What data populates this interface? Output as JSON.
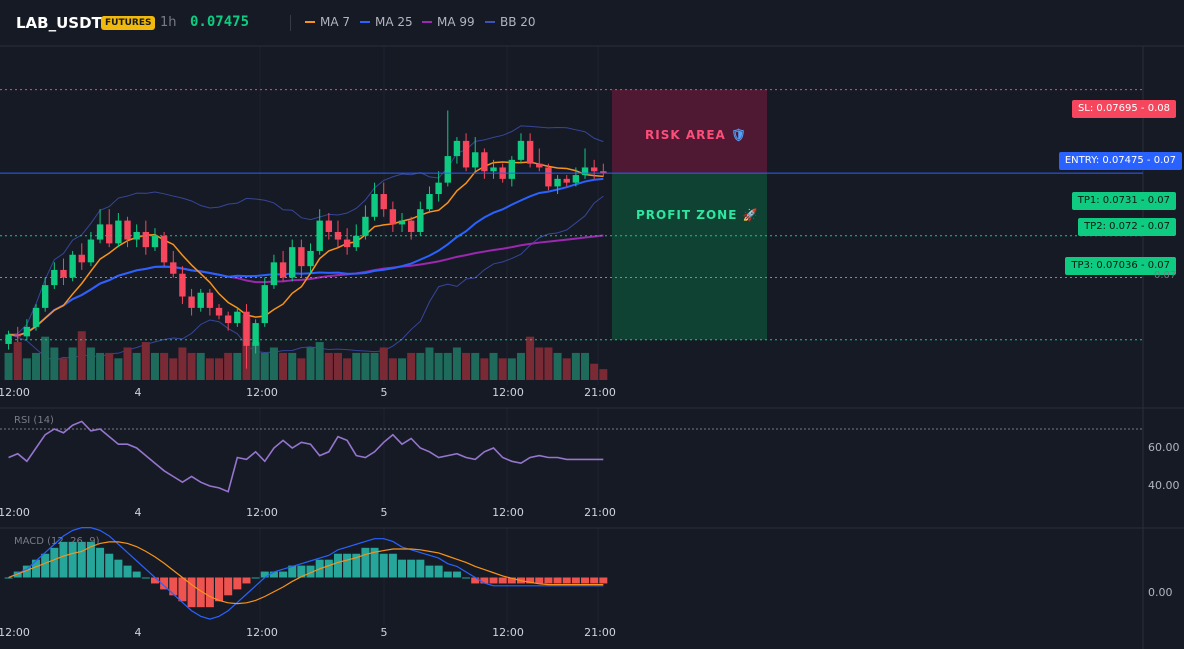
{
  "header": {
    "symbol": "LAB_USDT",
    "badge": "FUTURES",
    "timeframe": "1h",
    "price": "0.07475",
    "legend": [
      {
        "label": "MA 7",
        "color": "#f7931a"
      },
      {
        "label": "MA 25",
        "color": "#2962ff"
      },
      {
        "label": "MA 99",
        "color": "#9c27b0"
      },
      {
        "label": "BB 20",
        "color": "#3f51b5"
      }
    ]
  },
  "zones": {
    "risk_label": "RISK AREA",
    "profit_label": "PROFIT ZONE",
    "risk_icon": "shield-icon",
    "profit_icon": "rocket-icon"
  },
  "price_tags": {
    "sl": "SL: 0.07695 - 0.08",
    "entry": "ENTRY: 0.07475 - 0.07",
    "tp1": "TP1: 0.0731 - 0.07",
    "tp2": "TP2: 0.072 - 0.07",
    "tp3": "TP3: 0.07036 - 0.07",
    "axis_partial": "0.07"
  },
  "rsi": {
    "label": "RSI (14)",
    "ticks": [
      "60.00",
      "40.00"
    ]
  },
  "macd": {
    "label": "MACD (12, 26, 9)",
    "ticks": [
      "0.00"
    ]
  },
  "chart_data": {
    "type": "candlestick",
    "x_ticks": [
      "12:00",
      "4",
      "12:00",
      "5",
      "12:00",
      "21:00"
    ],
    "levels": {
      "sl": 0.07695,
      "entry": 0.07475,
      "tp1": 0.0731,
      "tp2": 0.072,
      "tp3": 0.07036
    },
    "ylim": [
      0.0693,
      0.0781
    ],
    "candles": [
      [
        0.07025,
        0.0705,
        0.0701,
        0.0706
      ],
      [
        0.0705,
        0.07045,
        0.0703,
        0.0707
      ],
      [
        0.07045,
        0.0707,
        0.07035,
        0.0709
      ],
      [
        0.0707,
        0.0712,
        0.0706,
        0.0713
      ],
      [
        0.0712,
        0.0718,
        0.0711,
        0.072
      ],
      [
        0.0718,
        0.0722,
        0.0717,
        0.0724
      ],
      [
        0.0722,
        0.072,
        0.0718,
        0.0725
      ],
      [
        0.072,
        0.0726,
        0.0719,
        0.0727
      ],
      [
        0.0726,
        0.0724,
        0.0722,
        0.0729
      ],
      [
        0.0724,
        0.073,
        0.0723,
        0.0732
      ],
      [
        0.073,
        0.0734,
        0.0729,
        0.0738
      ],
      [
        0.0734,
        0.0729,
        0.0728,
        0.0738
      ],
      [
        0.0729,
        0.0735,
        0.0728,
        0.0737
      ],
      [
        0.0735,
        0.073,
        0.0728,
        0.0736
      ],
      [
        0.073,
        0.0732,
        0.0728,
        0.0734
      ],
      [
        0.0732,
        0.0728,
        0.0726,
        0.0735
      ],
      [
        0.0728,
        0.0731,
        0.0727,
        0.0733
      ],
      [
        0.0731,
        0.0724,
        0.0723,
        0.0732
      ],
      [
        0.0724,
        0.0721,
        0.072,
        0.0727
      ],
      [
        0.0721,
        0.0715,
        0.0713,
        0.0723
      ],
      [
        0.0715,
        0.0712,
        0.071,
        0.0717
      ],
      [
        0.0712,
        0.0716,
        0.0711,
        0.0717
      ],
      [
        0.0716,
        0.0712,
        0.071,
        0.0717
      ],
      [
        0.0712,
        0.071,
        0.0709,
        0.0713
      ],
      [
        0.071,
        0.0708,
        0.0706,
        0.0711
      ],
      [
        0.0708,
        0.0711,
        0.0707,
        0.0712
      ],
      [
        0.0711,
        0.0702,
        0.0696,
        0.0713
      ],
      [
        0.0702,
        0.0708,
        0.07,
        0.0709
      ],
      [
        0.0708,
        0.0718,
        0.0707,
        0.072
      ],
      [
        0.0718,
        0.0724,
        0.0717,
        0.0726
      ],
      [
        0.0724,
        0.072,
        0.0719,
        0.0727
      ],
      [
        0.072,
        0.0728,
        0.0719,
        0.073
      ],
      [
        0.0728,
        0.0723,
        0.072,
        0.073
      ],
      [
        0.0723,
        0.0727,
        0.0721,
        0.0729
      ],
      [
        0.0727,
        0.0735,
        0.0726,
        0.0738
      ],
      [
        0.0735,
        0.0732,
        0.073,
        0.0737
      ],
      [
        0.0732,
        0.073,
        0.0728,
        0.0735
      ],
      [
        0.073,
        0.0728,
        0.0726,
        0.0733
      ],
      [
        0.0728,
        0.0731,
        0.0727,
        0.0734
      ],
      [
        0.0731,
        0.0736,
        0.073,
        0.0739
      ],
      [
        0.0736,
        0.0742,
        0.0735,
        0.0745
      ],
      [
        0.0742,
        0.0738,
        0.0736,
        0.0745
      ],
      [
        0.0738,
        0.0734,
        0.0732,
        0.074
      ],
      [
        0.0734,
        0.0735,
        0.0732,
        0.0737
      ],
      [
        0.0735,
        0.0732,
        0.073,
        0.0736
      ],
      [
        0.0732,
        0.0738,
        0.0731,
        0.074
      ],
      [
        0.0738,
        0.0742,
        0.0737,
        0.0744
      ],
      [
        0.0742,
        0.0745,
        0.074,
        0.0748
      ],
      [
        0.0745,
        0.0752,
        0.0744,
        0.0764
      ],
      [
        0.0752,
        0.0756,
        0.075,
        0.0757
      ],
      [
        0.0756,
        0.0749,
        0.0748,
        0.0758
      ],
      [
        0.0749,
        0.0753,
        0.0748,
        0.0757
      ],
      [
        0.0753,
        0.0748,
        0.0746,
        0.0754
      ],
      [
        0.0748,
        0.0749,
        0.0746,
        0.0751
      ],
      [
        0.0749,
        0.0746,
        0.0745,
        0.075
      ],
      [
        0.0746,
        0.0751,
        0.0744,
        0.0752
      ],
      [
        0.0751,
        0.0756,
        0.075,
        0.0758
      ],
      [
        0.0756,
        0.075,
        0.0749,
        0.0758
      ],
      [
        0.075,
        0.0749,
        0.0748,
        0.0754
      ],
      [
        0.0749,
        0.0744,
        0.0743,
        0.075
      ],
      [
        0.0744,
        0.0746,
        0.0742,
        0.0747
      ],
      [
        0.0746,
        0.0745,
        0.0744,
        0.0747
      ],
      [
        0.0745,
        0.0747,
        0.0744,
        0.0749
      ],
      [
        0.0747,
        0.0749,
        0.0746,
        0.0754
      ],
      [
        0.0749,
        0.0748,
        0.0746,
        0.0751
      ],
      [
        0.0748,
        0.07475,
        0.07465,
        0.075
      ]
    ],
    "volume": [
      5,
      7,
      4,
      5,
      8,
      6,
      4,
      6,
      9,
      6,
      5,
      5,
      4,
      6,
      5,
      7,
      5,
      5,
      4,
      6,
      5,
      5,
      4,
      4,
      5,
      5,
      12,
      7,
      5,
      6,
      5,
      5,
      4,
      6,
      7,
      5,
      5,
      4,
      5,
      5,
      5,
      6,
      4,
      4,
      5,
      5,
      6,
      5,
      5,
      6,
      5,
      5,
      4,
      5,
      4,
      4,
      5,
      8,
      6,
      6,
      5,
      4,
      5,
      5,
      3,
      2
    ],
    "rsi": [
      55,
      57,
      53,
      60,
      67,
      70,
      68,
      72,
      74,
      69,
      70,
      66,
      62,
      62,
      60,
      56,
      52,
      48,
      45,
      42,
      45,
      42,
      40,
      39,
      37,
      55,
      54,
      58,
      53,
      60,
      64,
      60,
      63,
      62,
      56,
      58,
      66,
      64,
      56,
      55,
      58,
      63,
      67,
      62,
      65,
      60,
      58,
      55,
      56,
      57,
      55,
      54,
      58,
      60,
      55,
      53,
      52,
      55,
      56,
      55,
      55,
      54,
      54,
      54,
      54,
      54
    ],
    "rsi_ylim": [
      30,
      80
    ],
    "rsi_level": 70,
    "macd": [
      0.0,
      0.0001,
      0.0002,
      0.0003,
      0.0004,
      0.0005,
      0.0006,
      0.0006,
      0.0006,
      0.0006,
      0.0005,
      0.0004,
      0.0003,
      0.0002,
      0.0001,
      0.0,
      -0.0001,
      -0.0002,
      -0.0003,
      -0.0004,
      -0.0005,
      -0.0005,
      -0.0005,
      -0.0004,
      -0.0003,
      -0.0002,
      -0.0001,
      0.0,
      0.0001,
      0.0001,
      0.0001,
      0.0002,
      0.0002,
      0.0002,
      0.0003,
      0.0003,
      0.0004,
      0.0004,
      0.0004,
      0.0005,
      0.0005,
      0.0004,
      0.0004,
      0.0003,
      0.0003,
      0.0003,
      0.0002,
      0.0002,
      0.0001,
      0.0001,
      0.0,
      -0.0001,
      -0.0001,
      -0.0001,
      -0.0001,
      -0.0001,
      -0.0001,
      -0.0001,
      -0.0001,
      -0.0001,
      -0.0001,
      -0.0001,
      -0.0001,
      -0.0001,
      -0.0001,
      -0.0001
    ],
    "macd_ylim": [
      -0.0008,
      0.0008
    ]
  }
}
